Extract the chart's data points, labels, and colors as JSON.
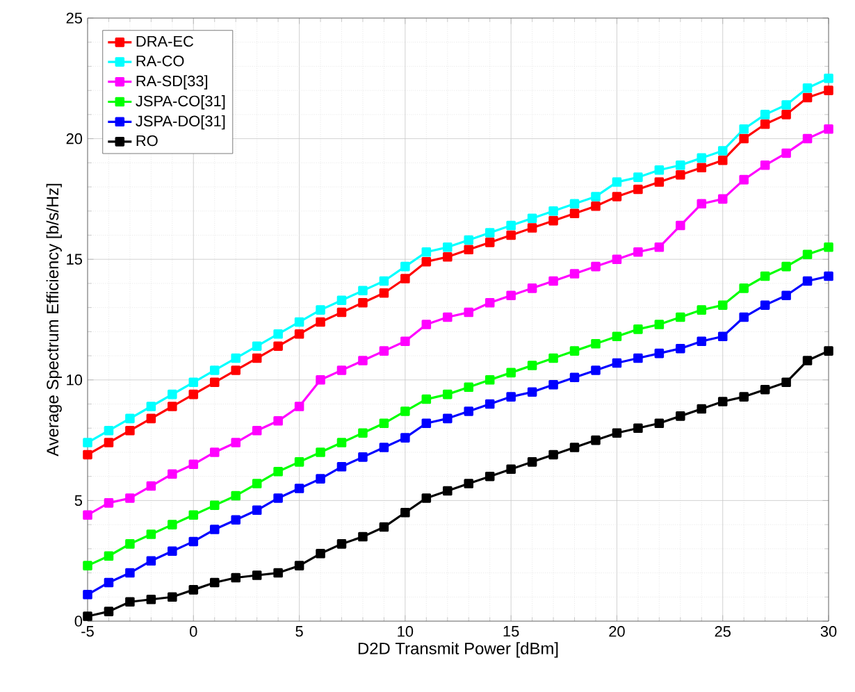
{
  "chart_data": {
    "type": "line",
    "xlabel": "D2D Transmit Power [dBm]",
    "ylabel": "Average Spectrum Efficiency [b/s/Hz]",
    "x": [
      -5,
      -4,
      -3,
      -2,
      -1,
      0,
      1,
      2,
      3,
      4,
      5,
      6,
      7,
      8,
      9,
      10,
      11,
      12,
      13,
      14,
      15,
      16,
      17,
      18,
      19,
      20,
      21,
      22,
      23,
      24,
      25,
      26,
      27,
      28,
      29,
      30
    ],
    "series": [
      {
        "name": "DRA-EC",
        "color": "#ff0000",
        "values": [
          6.9,
          7.4,
          7.9,
          8.4,
          8.9,
          9.4,
          9.9,
          10.4,
          10.9,
          11.4,
          11.9,
          12.4,
          12.8,
          13.2,
          13.6,
          14.2,
          14.9,
          15.1,
          15.4,
          15.7,
          16.0,
          16.3,
          16.6,
          16.9,
          17.2,
          17.6,
          17.9,
          18.2,
          18.5,
          18.8,
          19.1,
          20.0,
          20.6,
          21.0,
          21.7,
          22.0
        ]
      },
      {
        "name": "RA-CO",
        "color": "#00ffff",
        "values": [
          7.4,
          7.9,
          8.4,
          8.9,
          9.4,
          9.9,
          10.4,
          10.9,
          11.4,
          11.9,
          12.4,
          12.9,
          13.3,
          13.7,
          14.1,
          14.7,
          15.3,
          15.5,
          15.8,
          16.1,
          16.4,
          16.7,
          17.0,
          17.3,
          17.6,
          18.2,
          18.4,
          18.7,
          18.9,
          19.2,
          19.5,
          20.4,
          21.0,
          21.4,
          22.1,
          22.5
        ]
      },
      {
        "name": "RA-SD[33]",
        "color": "#ff00ff",
        "values": [
          4.4,
          4.9,
          5.1,
          5.6,
          6.1,
          6.5,
          7.0,
          7.4,
          7.9,
          8.3,
          8.9,
          10.0,
          10.4,
          10.8,
          11.2,
          11.6,
          12.3,
          12.6,
          12.8,
          13.2,
          13.5,
          13.8,
          14.1,
          14.4,
          14.7,
          15.0,
          15.3,
          15.5,
          16.4,
          17.3,
          17.5,
          18.3,
          18.9,
          19.4,
          20.0,
          20.4
        ]
      },
      {
        "name": "JSPA-CO[31]",
        "color": "#00ff00",
        "values": [
          2.3,
          2.7,
          3.2,
          3.6,
          4.0,
          4.4,
          4.8,
          5.2,
          5.7,
          6.2,
          6.6,
          7.0,
          7.4,
          7.8,
          8.2,
          8.7,
          9.2,
          9.4,
          9.7,
          10.0,
          10.3,
          10.6,
          10.9,
          11.2,
          11.5,
          11.8,
          12.1,
          12.3,
          12.6,
          12.9,
          13.1,
          13.8,
          14.3,
          14.7,
          15.2,
          15.5
        ]
      },
      {
        "name": "JSPA-DO[31]",
        "color": "#0000ff",
        "values": [
          1.1,
          1.6,
          2.0,
          2.5,
          2.9,
          3.3,
          3.8,
          4.2,
          4.6,
          5.1,
          5.5,
          5.9,
          6.4,
          6.8,
          7.2,
          7.6,
          8.2,
          8.4,
          8.7,
          9.0,
          9.3,
          9.5,
          9.8,
          10.1,
          10.4,
          10.7,
          10.9,
          11.1,
          11.3,
          11.6,
          11.8,
          12.6,
          13.1,
          13.5,
          14.1,
          14.3
        ]
      },
      {
        "name": "RO",
        "color": "#000000",
        "values": [
          0.2,
          0.4,
          0.8,
          0.9,
          1.0,
          1.3,
          1.6,
          1.8,
          1.9,
          2.0,
          2.3,
          2.8,
          3.2,
          3.5,
          3.9,
          4.5,
          5.1,
          5.4,
          5.7,
          6.0,
          6.3,
          6.6,
          6.9,
          7.2,
          7.5,
          7.8,
          8.0,
          8.2,
          8.5,
          8.8,
          9.1,
          9.3,
          9.6,
          9.9,
          10.8,
          11.2
        ]
      }
    ],
    "xlim": [
      -5,
      30
    ],
    "ylim": [
      0,
      25
    ],
    "xticks": [
      -5,
      0,
      5,
      10,
      15,
      20,
      25,
      30
    ],
    "yticks": [
      0,
      5,
      10,
      15,
      20,
      25
    ],
    "grid": true,
    "legend": "top left",
    "marker": "square",
    "line_style": "solid"
  }
}
